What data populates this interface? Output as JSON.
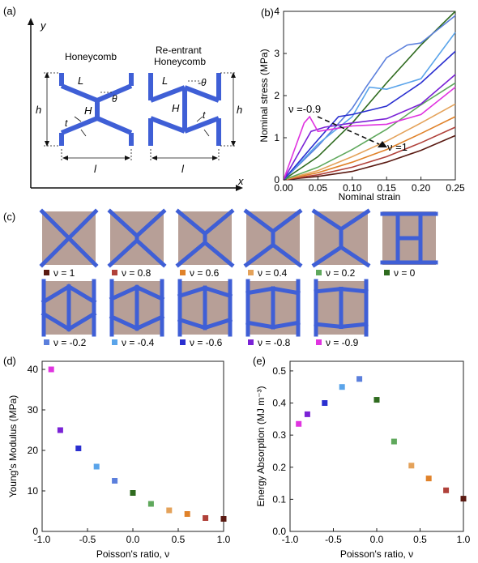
{
  "colors": {
    "blue": "#3f5fd6",
    "tile_bg": "#b79f97",
    "nu_1": "#5a1a12",
    "nu_0_8": "#b0413a",
    "nu_0_6": "#e0822a",
    "nu_0_4": "#e4a25a",
    "nu_0_2": "#5fa85c",
    "nu_0": "#2f6b1f",
    "nu_m0_2": "#5b7fdc",
    "nu_m0_4": "#5aa4ea",
    "nu_m0_6": "#2a2fd0",
    "nu_m0_8": "#7a22d6",
    "nu_m0_9": "#e034e0"
  },
  "panel_a": {
    "label": "(a)",
    "axis_y": "y",
    "axis_x": "x",
    "honeycomb_title": "Honeycomb",
    "reentrant_title_1": "Re-entrant",
    "reentrant_title_2": "Honeycomb",
    "sym_L": "L",
    "sym_H": "H",
    "sym_theta": "θ",
    "sym_neg_theta": "-θ",
    "sym_t": "t",
    "sym_h": "h",
    "sym_l": "l"
  },
  "panel_b": {
    "label": "(b)",
    "annot_start": "ν =-0.9",
    "annot_end": "ν =1"
  },
  "panel_c": {
    "label": "(c)",
    "legend": [
      "ν = 1",
      "ν = 0.8",
      "ν = 0.6",
      "ν = 0.4",
      "ν = 0.2",
      "ν = 0",
      "ν = -0.2",
      "ν = -0.4",
      "ν = -0.6",
      "ν = -0.8",
      "ν = -0.9"
    ]
  },
  "panel_d": {
    "label": "(d)"
  },
  "panel_e": {
    "label": "(e)"
  },
  "chart_data": [
    {
      "panel": "b",
      "type": "line",
      "xlabel": "Nominal strain",
      "ylabel": "Nominal stress (MPa)",
      "xlim": [
        0,
        0.25
      ],
      "ylim": [
        0,
        4
      ],
      "xticks": [
        "0.00",
        "0.05",
        "0.10",
        "0.15",
        "0.20",
        "0.25"
      ],
      "yticks": [
        "0",
        "1",
        "2",
        "3",
        "4"
      ],
      "series": [
        {
          "nu": "1",
          "x": [
            0,
            0.05,
            0.1,
            0.15,
            0.2,
            0.25
          ],
          "y": [
            0,
            0.08,
            0.2,
            0.42,
            0.7,
            1.05
          ]
        },
        {
          "nu": "0.8",
          "x": [
            0,
            0.05,
            0.1,
            0.15,
            0.2,
            0.25
          ],
          "y": [
            0,
            0.12,
            0.3,
            0.55,
            0.88,
            1.25
          ]
        },
        {
          "nu": "0.6",
          "x": [
            0,
            0.05,
            0.1,
            0.15,
            0.2,
            0.25
          ],
          "y": [
            0,
            0.17,
            0.42,
            0.72,
            1.1,
            1.5
          ]
        },
        {
          "nu": "0.4",
          "x": [
            0,
            0.05,
            0.1,
            0.15,
            0.2,
            0.25
          ],
          "y": [
            0,
            0.22,
            0.55,
            0.92,
            1.35,
            1.8
          ]
        },
        {
          "nu": "0.2",
          "x": [
            0,
            0.05,
            0.1,
            0.15,
            0.2,
            0.25
          ],
          "y": [
            0,
            0.3,
            0.72,
            1.2,
            1.78,
            2.3
          ]
        },
        {
          "nu": "0",
          "x": [
            0,
            0.05,
            0.1,
            0.15,
            0.2,
            0.25
          ],
          "y": [
            0,
            0.55,
            1.35,
            2.3,
            3.2,
            4.0
          ]
        },
        {
          "nu": "-0.2",
          "x": [
            0,
            0.05,
            0.1,
            0.12,
            0.15,
            0.18,
            0.2,
            0.25
          ],
          "y": [
            0,
            0.8,
            1.7,
            2.2,
            2.9,
            3.2,
            3.25,
            3.9
          ]
        },
        {
          "nu": "-0.4",
          "x": [
            0,
            0.05,
            0.1,
            0.125,
            0.15,
            0.2,
            0.25
          ],
          "y": [
            0,
            0.85,
            1.5,
            2.2,
            2.15,
            2.4,
            3.5
          ]
        },
        {
          "nu": "-0.6",
          "x": [
            0,
            0.05,
            0.08,
            0.1,
            0.15,
            0.2,
            0.25
          ],
          "y": [
            0,
            0.95,
            1.5,
            1.55,
            1.75,
            2.3,
            3.05
          ]
        },
        {
          "nu": "-0.8",
          "x": [
            0,
            0.04,
            0.06,
            0.1,
            0.15,
            0.2,
            0.25
          ],
          "y": [
            0,
            1.15,
            1.25,
            1.35,
            1.45,
            1.8,
            2.5
          ]
        },
        {
          "nu": "-0.9",
          "x": [
            0,
            0.03,
            0.038,
            0.05,
            0.1,
            0.15,
            0.2,
            0.25
          ],
          "y": [
            0,
            1.35,
            1.5,
            1.15,
            1.28,
            1.32,
            1.55,
            2.2
          ]
        }
      ]
    },
    {
      "panel": "d",
      "type": "scatter",
      "xlabel": "Poisson's ratio, ν",
      "ylabel": "Young's Modulus (MPa)",
      "xlim": [
        -1.0,
        1.0
      ],
      "ylim": [
        0,
        42
      ],
      "xticks": [
        "-1.0",
        "-0.5",
        "0.0",
        "0.5",
        "1.0"
      ],
      "yticks": [
        "0",
        "10",
        "20",
        "30",
        "40"
      ],
      "x": [
        -0.9,
        -0.8,
        -0.6,
        -0.4,
        -0.2,
        0.0,
        0.2,
        0.4,
        0.6,
        0.8,
        1.0
      ],
      "y": [
        40,
        25,
        20.5,
        16,
        12.5,
        9.5,
        6.8,
        5.2,
        4.3,
        3.3,
        3.1
      ]
    },
    {
      "panel": "e",
      "type": "scatter",
      "xlabel": "Poisson's ratio, ν",
      "ylabel": "Energy Absorption (MJ m⁻³)",
      "xlim": [
        -1.0,
        1.0
      ],
      "ylim": [
        0,
        0.53
      ],
      "xticks": [
        "-1.0",
        "-0.5",
        "0.0",
        "0.5",
        "1.0"
      ],
      "yticks": [
        "0.0",
        "0.1",
        "0.2",
        "0.3",
        "0.4",
        "0.5"
      ],
      "x": [
        -0.9,
        -0.8,
        -0.6,
        -0.4,
        -0.2,
        0.0,
        0.2,
        0.4,
        0.6,
        0.8,
        1.0
      ],
      "y": [
        0.335,
        0.365,
        0.4,
        0.45,
        0.475,
        0.41,
        0.28,
        0.205,
        0.165,
        0.128,
        0.102
      ]
    }
  ]
}
